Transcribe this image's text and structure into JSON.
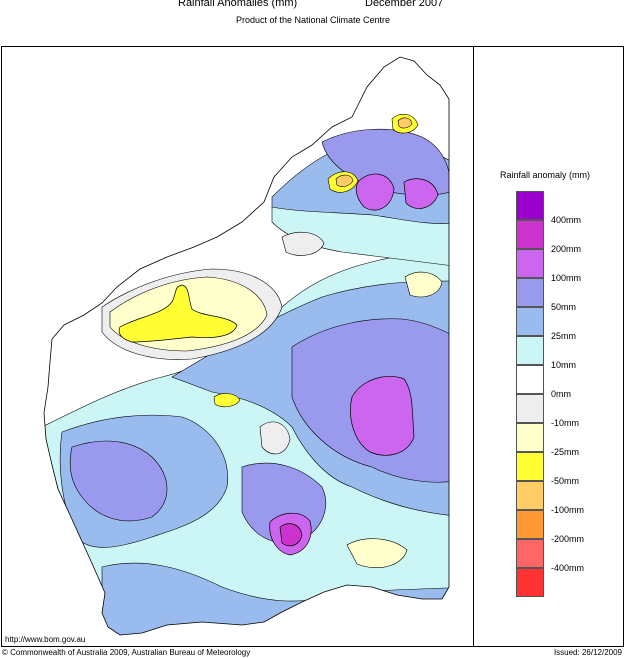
{
  "header": {
    "title": "Rainfall Anomalies (mm)",
    "period": "December 2007",
    "subtitle": "Product of the National Climate Centre"
  },
  "legend": {
    "title": "Rainfall anomaly (mm)",
    "items": [
      {
        "label": "400mm",
        "color": "#9900cc"
      },
      {
        "label": "200mm",
        "color": "#cc33cc"
      },
      {
        "label": "100mm",
        "color": "#cc66ee"
      },
      {
        "label": "50mm",
        "color": "#9999ee"
      },
      {
        "label": "25mm",
        "color": "#99bbee"
      },
      {
        "label": "10mm",
        "color": "#ccf5f5"
      },
      {
        "label": "0mm",
        "color": "#ffffff"
      },
      {
        "label": "-10mm",
        "color": "#eeeeee"
      },
      {
        "label": "-25mm",
        "color": "#ffffcc"
      },
      {
        "label": "-50mm",
        "color": "#ffff33"
      },
      {
        "label": "-100mm",
        "color": "#ffcc66"
      },
      {
        "label": "-200mm",
        "color": "#ff9933"
      },
      {
        "label": "-400mm",
        "color": "#ff6666"
      },
      {
        "label": "",
        "color": "#ff3333"
      }
    ]
  },
  "footer": {
    "url": "http://www.bom.gov.au",
    "copyright": "© Commonwealth of Australia 2009, Australian Bureau of Meteorology",
    "issued": "Issued: 26/12/2009"
  }
}
